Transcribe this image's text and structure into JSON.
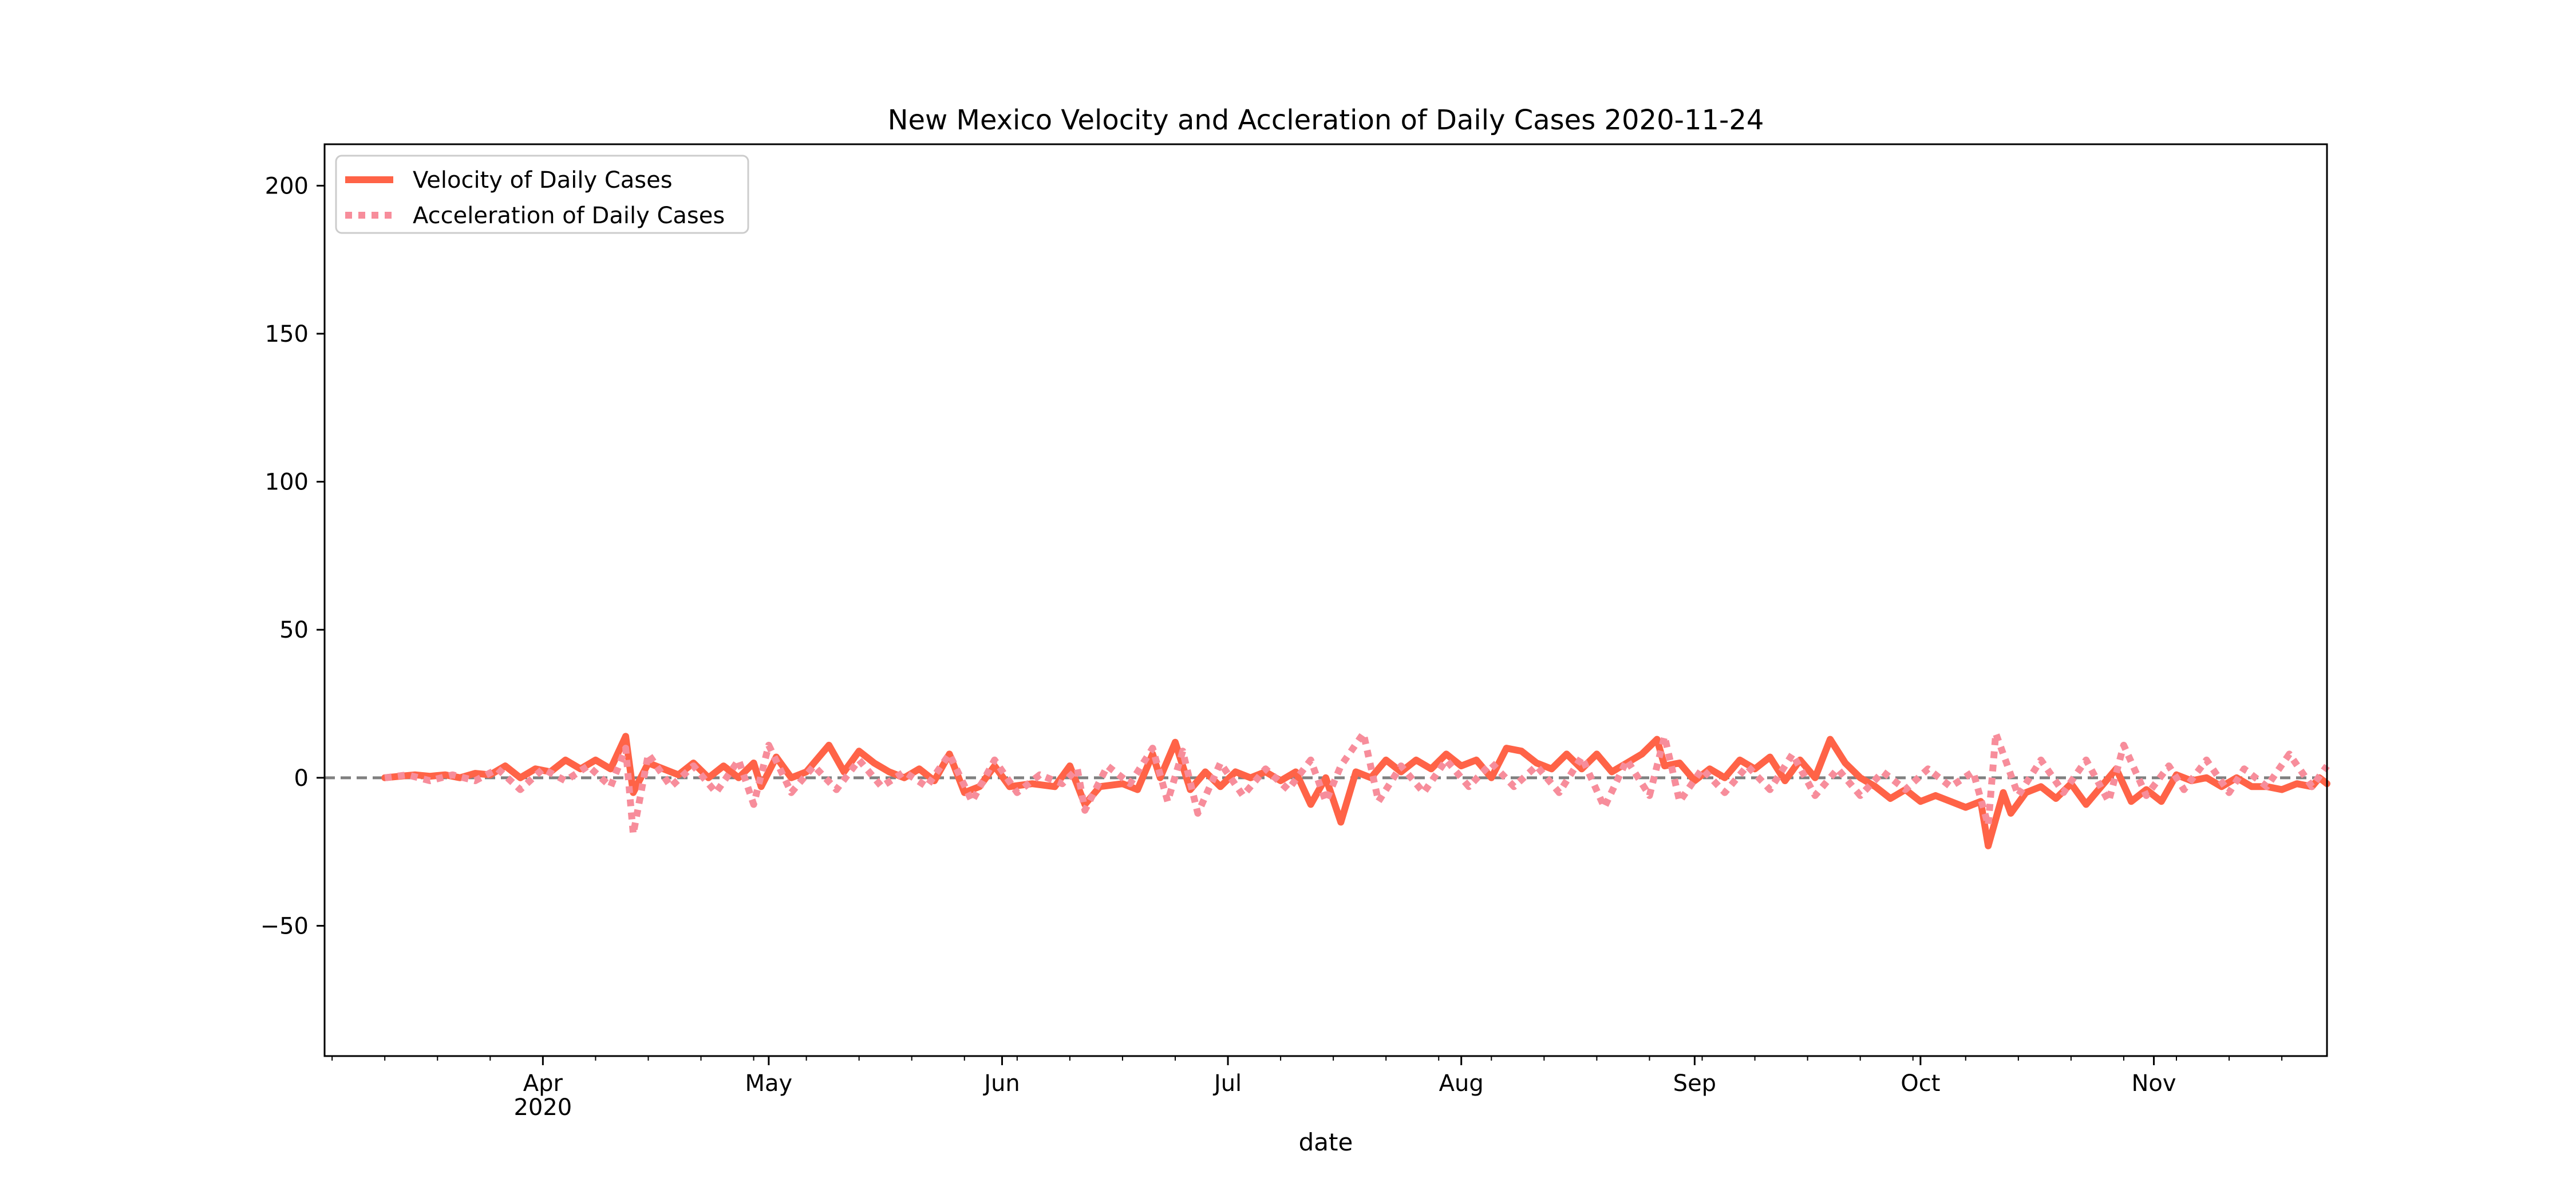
{
  "chart_data": {
    "type": "line",
    "title": "New Mexico Velocity and Accleration of Daily Cases 2020-11-24",
    "xlabel": "date",
    "ylabel": "",
    "xlim": [
      "2020-03-03",
      "2020-11-24"
    ],
    "ylim": [
      -94,
      214
    ],
    "yticks": [
      -50,
      0,
      50,
      100,
      150,
      200
    ],
    "xticks": [
      {
        "date": "2020-04-01",
        "label": "Apr",
        "sublabel": "2020"
      },
      {
        "date": "2020-05-01",
        "label": "May",
        "sublabel": ""
      },
      {
        "date": "2020-06-01",
        "label": "Jun",
        "sublabel": ""
      },
      {
        "date": "2020-07-01",
        "label": "Jul",
        "sublabel": ""
      },
      {
        "date": "2020-08-01",
        "label": "Aug",
        "sublabel": ""
      },
      {
        "date": "2020-09-01",
        "label": "Sep",
        "sublabel": ""
      },
      {
        "date": "2020-10-01",
        "label": "Oct",
        "sublabel": ""
      },
      {
        "date": "2020-11-01",
        "label": "Nov",
        "sublabel": ""
      }
    ],
    "grid": false,
    "legend_position": "top-left",
    "zero_line": {
      "y": 0,
      "color": "#808080",
      "style": "dashed"
    },
    "series": [
      {
        "name": "Velocity of Daily Cases",
        "color": "#ff6347",
        "style": "solid",
        "points": [
          [
            "2020-03-11",
            0
          ],
          [
            "2020-03-13",
            0.5
          ],
          [
            "2020-03-15",
            1
          ],
          [
            "2020-03-17",
            0.5
          ],
          [
            "2020-03-19",
            1
          ],
          [
            "2020-03-21",
            0
          ],
          [
            "2020-03-23",
            1.5
          ],
          [
            "2020-03-25",
            1
          ],
          [
            "2020-03-27",
            4
          ],
          [
            "2020-03-29",
            0
          ],
          [
            "2020-03-31",
            3
          ],
          [
            "2020-04-02",
            2
          ],
          [
            "2020-04-04",
            6
          ],
          [
            "2020-04-06",
            3
          ],
          [
            "2020-04-08",
            6
          ],
          [
            "2020-04-10",
            3
          ],
          [
            "2020-04-12",
            14
          ],
          [
            "2020-04-13",
            -5
          ],
          [
            "2020-04-15",
            5
          ],
          [
            "2020-04-17",
            3
          ],
          [
            "2020-04-19",
            1
          ],
          [
            "2020-04-21",
            5
          ],
          [
            "2020-04-23",
            0
          ],
          [
            "2020-04-25",
            4
          ],
          [
            "2020-04-27",
            0
          ],
          [
            "2020-04-29",
            5
          ],
          [
            "2020-04-30",
            -3
          ],
          [
            "2020-05-02",
            7
          ],
          [
            "2020-05-04",
            0
          ],
          [
            "2020-05-06",
            2
          ],
          [
            "2020-05-09",
            11
          ],
          [
            "2020-05-11",
            2
          ],
          [
            "2020-05-13",
            9
          ],
          [
            "2020-05-15",
            5
          ],
          [
            "2020-05-17",
            2
          ],
          [
            "2020-05-19",
            0
          ],
          [
            "2020-05-21",
            3
          ],
          [
            "2020-05-23",
            -1
          ],
          [
            "2020-05-25",
            8
          ],
          [
            "2020-05-27",
            -5
          ],
          [
            "2020-05-29",
            -3
          ],
          [
            "2020-05-31",
            4
          ],
          [
            "2020-06-02",
            -3
          ],
          [
            "2020-06-05",
            -2
          ],
          [
            "2020-06-08",
            -3
          ],
          [
            "2020-06-10",
            4
          ],
          [
            "2020-06-12",
            -9
          ],
          [
            "2020-06-14",
            -3
          ],
          [
            "2020-06-17",
            -2
          ],
          [
            "2020-06-19",
            -4
          ],
          [
            "2020-06-21",
            8
          ],
          [
            "2020-06-22",
            0
          ],
          [
            "2020-06-24",
            12
          ],
          [
            "2020-06-26",
            -4
          ],
          [
            "2020-06-28",
            2
          ],
          [
            "2020-06-30",
            -3
          ],
          [
            "2020-07-02",
            2
          ],
          [
            "2020-07-04",
            0
          ],
          [
            "2020-07-06",
            2
          ],
          [
            "2020-07-08",
            -1
          ],
          [
            "2020-07-10",
            2
          ],
          [
            "2020-07-12",
            -9
          ],
          [
            "2020-07-14",
            0
          ],
          [
            "2020-07-16",
            -15
          ],
          [
            "2020-07-18",
            2
          ],
          [
            "2020-07-20",
            0
          ],
          [
            "2020-07-22",
            6
          ],
          [
            "2020-07-24",
            2
          ],
          [
            "2020-07-26",
            6
          ],
          [
            "2020-07-28",
            3
          ],
          [
            "2020-07-30",
            8
          ],
          [
            "2020-08-01",
            4
          ],
          [
            "2020-08-03",
            6
          ],
          [
            "2020-08-05",
            0
          ],
          [
            "2020-08-07",
            10
          ],
          [
            "2020-08-09",
            9
          ],
          [
            "2020-08-11",
            5
          ],
          [
            "2020-08-13",
            3
          ],
          [
            "2020-08-15",
            8
          ],
          [
            "2020-08-17",
            3
          ],
          [
            "2020-08-19",
            8
          ],
          [
            "2020-08-21",
            2
          ],
          [
            "2020-08-23",
            5
          ],
          [
            "2020-08-25",
            8
          ],
          [
            "2020-08-27",
            13
          ],
          [
            "2020-08-28",
            4
          ],
          [
            "2020-08-30",
            5
          ],
          [
            "2020-09-01",
            -1
          ],
          [
            "2020-09-03",
            3
          ],
          [
            "2020-09-05",
            0
          ],
          [
            "2020-09-07",
            6
          ],
          [
            "2020-09-09",
            3
          ],
          [
            "2020-09-11",
            7
          ],
          [
            "2020-09-13",
            -1
          ],
          [
            "2020-09-15",
            6
          ],
          [
            "2020-09-17",
            0
          ],
          [
            "2020-09-19",
            13
          ],
          [
            "2020-09-21",
            5
          ],
          [
            "2020-09-23",
            0
          ],
          [
            "2020-09-25",
            -3
          ],
          [
            "2020-09-27",
            -7
          ],
          [
            "2020-09-29",
            -4
          ],
          [
            "2020-10-01",
            -8
          ],
          [
            "2020-10-03",
            -6
          ],
          [
            "2020-10-05",
            -8
          ],
          [
            "2020-10-07",
            -10
          ],
          [
            "2020-10-09",
            -8
          ],
          [
            "2020-10-10",
            -23
          ],
          [
            "2020-10-12",
            -5
          ],
          [
            "2020-10-13",
            -12
          ],
          [
            "2020-10-15",
            -5
          ],
          [
            "2020-10-17",
            -3
          ],
          [
            "2020-10-19",
            -7
          ],
          [
            "2020-10-21",
            -2
          ],
          [
            "2020-10-23",
            -9
          ],
          [
            "2020-10-25",
            -3
          ],
          [
            "2020-10-27",
            3
          ],
          [
            "2020-10-29",
            -8
          ],
          [
            "2020-10-31",
            -4
          ],
          [
            "2020-11-02",
            -8
          ],
          [
            "2020-11-04",
            1
          ],
          [
            "2020-11-06",
            -1
          ],
          [
            "2020-11-08",
            0
          ],
          [
            "2020-11-10",
            -3
          ],
          [
            "2020-11-12",
            0
          ],
          [
            "2020-11-14",
            -3
          ],
          [
            "2020-11-16",
            -3
          ],
          [
            "2020-11-18",
            -4
          ],
          [
            "2020-11-20",
            -2
          ],
          [
            "2020-11-22",
            -3
          ],
          [
            "2020-11-23",
            0
          ],
          [
            "2020-11-24",
            -2
          ]
        ]
      },
      {
        "name": "Acceleration of Daily Cases",
        "color": "#f78d9b",
        "style": "dotted",
        "points": [
          [
            "2020-03-11",
            0
          ],
          [
            "2020-03-14",
            1
          ],
          [
            "2020-03-17",
            -1
          ],
          [
            "2020-03-20",
            1
          ],
          [
            "2020-03-23",
            -1
          ],
          [
            "2020-03-26",
            3
          ],
          [
            "2020-03-29",
            -4
          ],
          [
            "2020-04-01",
            3
          ],
          [
            "2020-04-04",
            -1
          ],
          [
            "2020-04-07",
            4
          ],
          [
            "2020-04-10",
            -3
          ],
          [
            "2020-04-12",
            10
          ],
          [
            "2020-04-13",
            -19
          ],
          [
            "2020-04-15",
            8
          ],
          [
            "2020-04-18",
            -3
          ],
          [
            "2020-04-21",
            4
          ],
          [
            "2020-04-24",
            -5
          ],
          [
            "2020-04-27",
            6
          ],
          [
            "2020-04-29",
            -9
          ],
          [
            "2020-05-01",
            11
          ],
          [
            "2020-05-04",
            -5
          ],
          [
            "2020-05-07",
            4
          ],
          [
            "2020-05-10",
            -4
          ],
          [
            "2020-05-13",
            6
          ],
          [
            "2020-05-16",
            -3
          ],
          [
            "2020-05-19",
            2
          ],
          [
            "2020-05-22",
            -3
          ],
          [
            "2020-05-25",
            8
          ],
          [
            "2020-05-28",
            -8
          ],
          [
            "2020-05-31",
            6
          ],
          [
            "2020-06-03",
            -5
          ],
          [
            "2020-06-06",
            1
          ],
          [
            "2020-06-09",
            -2
          ],
          [
            "2020-06-11",
            3
          ],
          [
            "2020-06-12",
            -11
          ],
          [
            "2020-06-15",
            4
          ],
          [
            "2020-06-18",
            -2
          ],
          [
            "2020-06-21",
            10
          ],
          [
            "2020-06-23",
            -8
          ],
          [
            "2020-06-25",
            9
          ],
          [
            "2020-06-27",
            -12
          ],
          [
            "2020-06-30",
            5
          ],
          [
            "2020-07-03",
            -6
          ],
          [
            "2020-07-06",
            3
          ],
          [
            "2020-07-09",
            -4
          ],
          [
            "2020-07-12",
            6
          ],
          [
            "2020-07-14",
            -8
          ],
          [
            "2020-07-16",
            4
          ],
          [
            "2020-07-19",
            15
          ],
          [
            "2020-07-21",
            -8
          ],
          [
            "2020-07-24",
            4
          ],
          [
            "2020-07-27",
            -5
          ],
          [
            "2020-07-30",
            6
          ],
          [
            "2020-08-02",
            -3
          ],
          [
            "2020-08-05",
            5
          ],
          [
            "2020-08-08",
            -3
          ],
          [
            "2020-08-11",
            4
          ],
          [
            "2020-08-14",
            -5
          ],
          [
            "2020-08-17",
            7
          ],
          [
            "2020-08-20",
            -10
          ],
          [
            "2020-08-23",
            6
          ],
          [
            "2020-08-26",
            -6
          ],
          [
            "2020-08-28",
            14
          ],
          [
            "2020-08-30",
            -8
          ],
          [
            "2020-09-02",
            3
          ],
          [
            "2020-09-05",
            -5
          ],
          [
            "2020-09-08",
            4
          ],
          [
            "2020-09-11",
            -4
          ],
          [
            "2020-09-14",
            8
          ],
          [
            "2020-09-17",
            -6
          ],
          [
            "2020-09-20",
            3
          ],
          [
            "2020-09-23",
            -6
          ],
          [
            "2020-09-26",
            2
          ],
          [
            "2020-09-29",
            -4
          ],
          [
            "2020-10-02",
            3
          ],
          [
            "2020-10-05",
            -3
          ],
          [
            "2020-10-08",
            2
          ],
          [
            "2020-10-10",
            -16
          ],
          [
            "2020-10-11",
            15
          ],
          [
            "2020-10-14",
            -6
          ],
          [
            "2020-10-17",
            6
          ],
          [
            "2020-10-20",
            -5
          ],
          [
            "2020-10-23",
            6
          ],
          [
            "2020-10-26",
            -8
          ],
          [
            "2020-10-28",
            11
          ],
          [
            "2020-10-31",
            -6
          ],
          [
            "2020-11-03",
            4
          ],
          [
            "2020-11-05",
            -4
          ],
          [
            "2020-11-08",
            6
          ],
          [
            "2020-11-11",
            -5
          ],
          [
            "2020-11-13",
            3
          ],
          [
            "2020-11-16",
            -3
          ],
          [
            "2020-11-19",
            8
          ],
          [
            "2020-11-22",
            -3
          ],
          [
            "2020-11-24",
            4
          ]
        ]
      }
    ],
    "legend": [
      "Velocity of Daily Cases",
      "Acceleration of Daily Cases"
    ]
  }
}
